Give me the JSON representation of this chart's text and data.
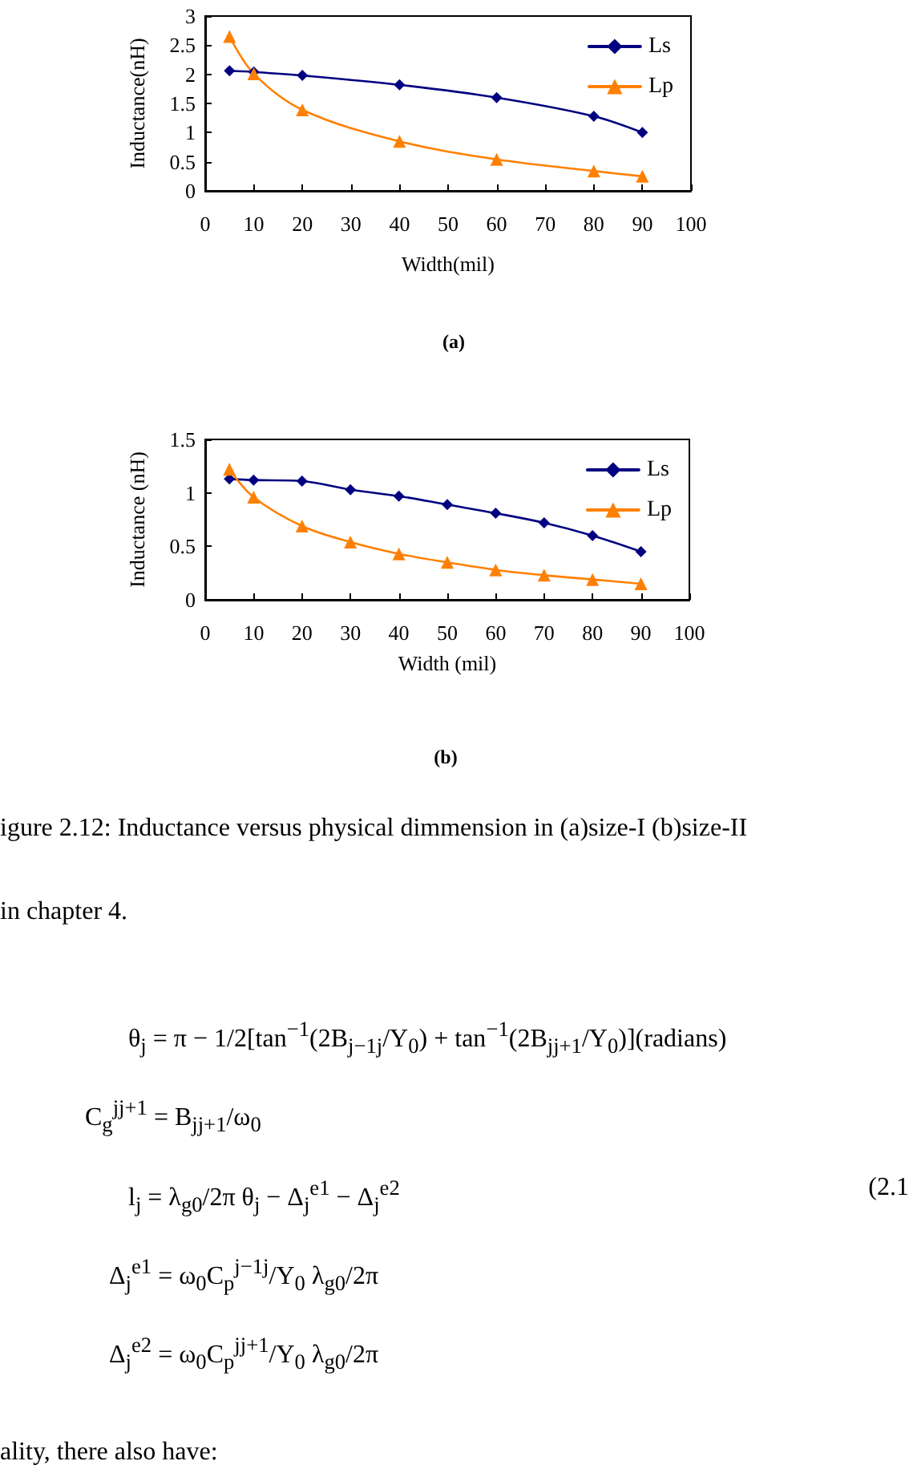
{
  "chart_data": [
    {
      "type": "line",
      "xlabel": "Width(mil)",
      "ylabel": "Inductance(nH)",
      "x": [
        5,
        10,
        20,
        40,
        60,
        80,
        90
      ],
      "series": [
        {
          "name": "Ls",
          "color": "#000080",
          "marker": "diamond",
          "values": [
            2.06,
            2.04,
            1.98,
            1.82,
            1.6,
            1.28,
            1.0
          ]
        },
        {
          "name": "Lp",
          "color": "#ff8000",
          "marker": "triangle",
          "values": [
            2.65,
            2.01,
            1.39,
            0.85,
            0.54,
            0.34,
            0.25
          ]
        }
      ],
      "xlim": [
        0,
        100
      ],
      "xticks": [
        0,
        10,
        20,
        30,
        40,
        50,
        60,
        70,
        80,
        90,
        100
      ],
      "ylim": [
        0,
        3
      ],
      "yticks": [
        0,
        0.5,
        1,
        1.5,
        2,
        2.5,
        3
      ],
      "legend": "top right",
      "annotations": [
        "(a)"
      ]
    },
    {
      "type": "line",
      "xlabel": "Width (mil)",
      "ylabel": "Inductance (nH)",
      "x": [
        5,
        10,
        20,
        30,
        40,
        50,
        60,
        70,
        80,
        90
      ],
      "series": [
        {
          "name": "Ls",
          "color": "#000080",
          "marker": "diamond",
          "values": [
            1.13,
            1.12,
            1.11,
            1.03,
            0.97,
            0.89,
            0.81,
            0.72,
            0.6,
            0.45
          ]
        },
        {
          "name": "Lp",
          "color": "#ff8000",
          "marker": "triangle",
          "values": [
            1.22,
            0.96,
            0.69,
            0.54,
            0.43,
            0.35,
            0.28,
            0.23,
            0.19,
            0.15
          ]
        }
      ],
      "xlim": [
        0,
        100
      ],
      "xticks": [
        0,
        10,
        20,
        30,
        40,
        50,
        60,
        70,
        80,
        90,
        100
      ],
      "ylim": [
        0,
        1.5
      ],
      "yticks": [
        0,
        0.5,
        1,
        1.5
      ],
      "legend": "top right",
      "annotations": [
        "(b)",
        "igure 2.12: Inductance versus physical dimmension in (a)size-I (b)size-II",
        "in chapter 4.",
        "θ$_{j}$ = π − 1/2[tan$^{−1}$(2B$_{j−1j}$/Y$_{0}$) + tan$^{−1}$(2B$_{jj+1}$/Y$_{0}$)](radians)",
        "C$_{g}$$^{jj+1}$ = B$_{jj+1}$/ω$_{0}$",
        "l$_{j}$ = λ$_{g0}$/2π θ$_{j}$ − Δ$_{j}$$^{e1}$ − Δ$_{j}$$^{e2}$",
        "Δ$_{j}$$^{e1}$ = ω$_{0}$C$_{p}$$^{j−1j}$/Y$_{0}$ λ$_{g0}$/2π",
        "Δ$_{j}$$^{e2}$ = ω$_{0}$C$_{p}$$^{jj+1}$/Y$_{0}$ λ$_{g0}$/2π",
        "(2.1",
        "ality, there also have:"
      ]
    }
  ]
}
